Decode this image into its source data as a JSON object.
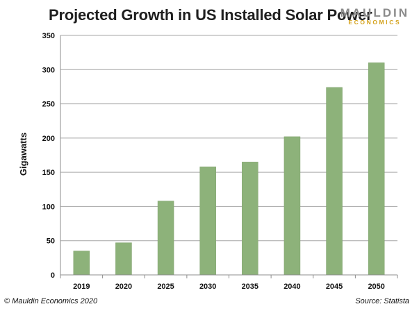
{
  "header": {
    "logo_top": "MAULDIN",
    "logo_bottom": "ECONOMICS"
  },
  "footer": {
    "copyright": "© Mauldin Economics 2020",
    "source": "Source: Statista"
  },
  "colors": {
    "bar": "#8db27a",
    "bar_stroke": "#7ea06b",
    "grid": "#a6a6a6",
    "axis": "#8c8c8c"
  },
  "chart_data": {
    "type": "bar",
    "title": "Projected Growth in US Installed Solar Power",
    "xlabel": "",
    "ylabel": "Gigawatts",
    "categories": [
      "2019",
      "2020",
      "2025",
      "2030",
      "2035",
      "2040",
      "2045",
      "2050"
    ],
    "values": [
      35,
      47,
      108,
      158,
      165,
      202,
      274,
      310
    ],
    "ylim": [
      0,
      350
    ],
    "yticks": [
      0,
      50,
      100,
      150,
      200,
      250,
      300,
      350
    ],
    "grid": true,
    "legend": "none"
  }
}
